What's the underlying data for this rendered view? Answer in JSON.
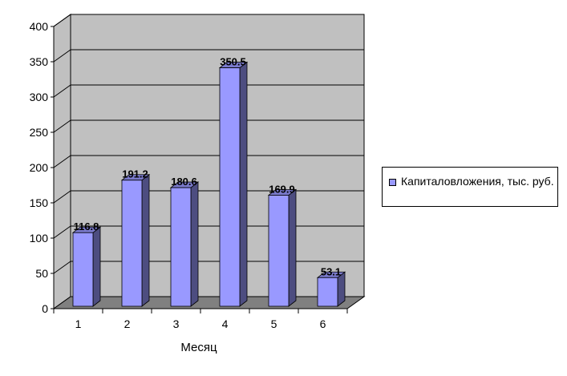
{
  "chart_data": {
    "type": "bar",
    "style": "3d",
    "categories": [
      "1",
      "2",
      "3",
      "4",
      "5",
      "6"
    ],
    "series": [
      {
        "name": "Капиталовложения, тыс. руб.",
        "values": [
          116.8,
          191.2,
          180.6,
          350.5,
          169.9,
          53.1
        ],
        "data_labels": [
          "116.8",
          "191.2",
          "180.6",
          "350.5",
          "169.9",
          "53.1"
        ]
      }
    ],
    "title": "",
    "xlabel": "Месяц",
    "ylabel": "",
    "ylim": [
      0,
      400
    ],
    "yticks": [
      0,
      50,
      100,
      150,
      200,
      250,
      300,
      350,
      400
    ],
    "grid": true,
    "legend_position": "right",
    "colors": {
      "bar_front": "#9999ff",
      "bar_side": "#4d4d80",
      "bar_top": "#7a7acc",
      "wall": "#c0c0c0",
      "floor": "#808080",
      "gridline": "#000000"
    }
  }
}
